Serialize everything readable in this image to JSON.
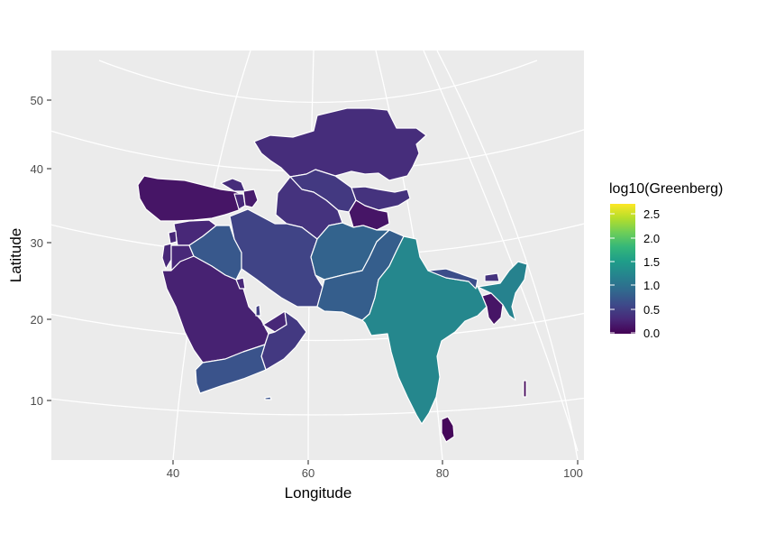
{
  "chart_data": {
    "type": "choropleth",
    "xlabel": "Longitude",
    "ylabel": "Latitude",
    "x_ticks": [
      "40",
      "60",
      "80",
      "100"
    ],
    "y_ticks": [
      "10",
      "20",
      "30",
      "40",
      "50"
    ],
    "legend": {
      "title": "log10(Greenberg)",
      "placement": "right",
      "range": [
        0,
        2.7
      ],
      "ticks": [
        "0.0",
        "0.5",
        "1.0",
        "1.5",
        "2.0",
        "2.5"
      ],
      "palette": [
        "#440154",
        "#482878",
        "#3e4989",
        "#31688e",
        "#26828e",
        "#1f9e89",
        "#35b779",
        "#6ece58",
        "#b5de2b",
        "#fde725"
      ]
    },
    "colors": {
      "panel": "#ebebeb",
      "grid": "#ffffff",
      "border": "#ffffff"
    },
    "regions": [
      {
        "name": "Kazakhstan",
        "value": 0.35
      },
      {
        "name": "Uzbekistan",
        "value": 0.45
      },
      {
        "name": "Turkmenistan",
        "value": 0.4
      },
      {
        "name": "Kyrgyzstan",
        "value": 0.4
      },
      {
        "name": "Tajikistan",
        "value": 0.15
      },
      {
        "name": "Turkey",
        "value": 0.15
      },
      {
        "name": "Georgia",
        "value": 0.35
      },
      {
        "name": "Armenia",
        "value": 0.3
      },
      {
        "name": "Azerbaijan",
        "value": 0.2
      },
      {
        "name": "Syria",
        "value": 0.3
      },
      {
        "name": "Lebanon",
        "value": 0.3
      },
      {
        "name": "Israel",
        "value": 0.3
      },
      {
        "name": "Jordan",
        "value": 0.3
      },
      {
        "name": "Iraq",
        "value": 0.75
      },
      {
        "name": "Iran",
        "value": 0.55
      },
      {
        "name": "Afghanistan",
        "value": 0.85
      },
      {
        "name": "Pakistan",
        "value": 0.8
      },
      {
        "name": "Saudi Arabia",
        "value": 0.25
      },
      {
        "name": "Kuwait",
        "value": 0.3
      },
      {
        "name": "Qatar",
        "value": 0.5
      },
      {
        "name": "United Arab Emirates",
        "value": 0.3
      },
      {
        "name": "Oman",
        "value": 0.45
      },
      {
        "name": "Yemen",
        "value": 0.7
      },
      {
        "name": "India",
        "value": 1.25
      },
      {
        "name": "Nepal",
        "value": 0.65
      },
      {
        "name": "Bhutan",
        "value": 0.4
      },
      {
        "name": "Bangladesh",
        "value": 0.15
      },
      {
        "name": "Northeast India",
        "value": 1.2
      },
      {
        "name": "Sri Lanka",
        "value": 0.05
      }
    ]
  }
}
